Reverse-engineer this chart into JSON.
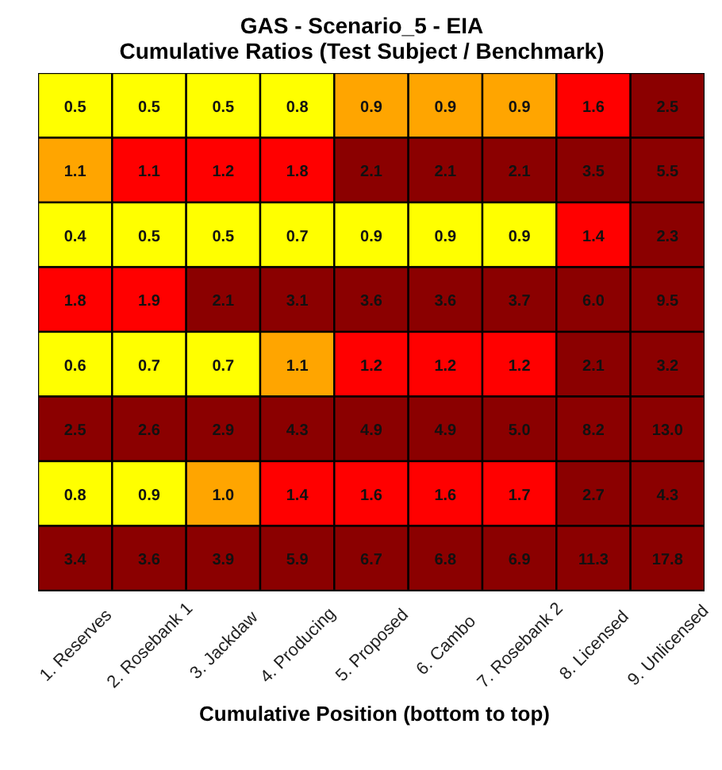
{
  "chart_data": {
    "type": "heatmap",
    "title": "GAS - Scenario_5 - EIA",
    "subtitle": "Cumulative Ratios (Test Subject / Benchmark)",
    "xlabel": "Cumulative Position (bottom to top)",
    "categories": [
      "1. Reserves",
      "2. Rosebank 1",
      "3. Jackdaw",
      "4. Producing",
      "5. Proposed",
      "6. Cambo",
      "7. Rosebank 2",
      "8. Licensed",
      "9. Unlicensed"
    ],
    "y_categories": [
      null,
      null,
      null,
      null,
      null,
      null,
      null,
      null
    ],
    "cells": [
      [
        0.5,
        0.5,
        0.5,
        0.8,
        0.92,
        0.92,
        0.92,
        1.6,
        2.5
      ],
      [
        1.08,
        1.12,
        1.2,
        1.8,
        2.1,
        2.1,
        2.1,
        3.5,
        5.5
      ],
      [
        0.4,
        0.5,
        0.5,
        0.7,
        0.88,
        0.88,
        0.88,
        1.4,
        2.3
      ],
      [
        1.8,
        1.9,
        2.1,
        3.1,
        3.6,
        3.6,
        3.7,
        6.0,
        9.5
      ],
      [
        0.6,
        0.7,
        0.7,
        1.08,
        1.2,
        1.2,
        1.2,
        2.1,
        3.2
      ],
      [
        2.5,
        2.6,
        2.9,
        4.3,
        4.9,
        4.9,
        5.0,
        8.2,
        13.0
      ],
      [
        0.8,
        0.88,
        1.0,
        1.4,
        1.6,
        1.6,
        1.7,
        2.7,
        4.3
      ],
      [
        3.4,
        3.6,
        3.9,
        5.9,
        6.7,
        6.8,
        6.9,
        11.3,
        17.8
      ]
    ],
    "cell_labels": [
      [
        "0.5",
        "0.5",
        "0.5",
        "0.8",
        "0.9",
        "0.9",
        "0.9",
        "1.6",
        "2.5"
      ],
      [
        "1.1",
        "1.1",
        "1.2",
        "1.8",
        "2.1",
        "2.1",
        "2.1",
        "3.5",
        "5.5"
      ],
      [
        "0.4",
        "0.5",
        "0.5",
        "0.7",
        "0.9",
        "0.9",
        "0.9",
        "1.4",
        "2.3"
      ],
      [
        "1.8",
        "1.9",
        "2.1",
        "3.1",
        "3.6",
        "3.6",
        "3.7",
        "6.0",
        "9.5"
      ],
      [
        "0.6",
        "0.7",
        "0.7",
        "1.1",
        "1.2",
        "1.2",
        "1.2",
        "2.1",
        "3.2"
      ],
      [
        "2.5",
        "2.6",
        "2.9",
        "4.3",
        "4.9",
        "4.9",
        "5.0",
        "8.2",
        "13.0"
      ],
      [
        "0.8",
        "0.9",
        "1.0",
        "1.4",
        "1.6",
        "1.6",
        "1.7",
        "2.7",
        "4.3"
      ],
      [
        "3.4",
        "3.6",
        "3.9",
        "5.9",
        "6.7",
        "6.8",
        "6.9",
        "11.3",
        "17.8"
      ]
    ],
    "data_labels": true
  }
}
